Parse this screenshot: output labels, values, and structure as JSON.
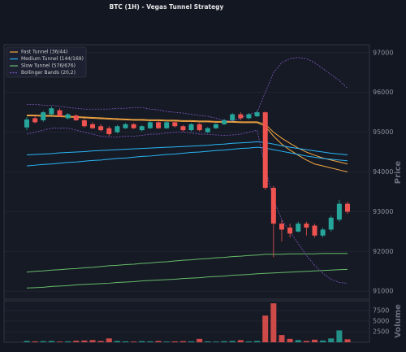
{
  "chart_data": {
    "type": "candlestick",
    "title": "BTC (1H) - Vegas Tunnel Strategy",
    "ylabel": "Price",
    "ylim": [
      90800,
      97200
    ],
    "yticks": [
      91000,
      92000,
      93000,
      94000,
      95000,
      96000,
      97000
    ],
    "grid": true,
    "legend": "upper left",
    "up_color": "#26a69a",
    "down_color": "#ef5350",
    "open": [
      95120,
      95350,
      95300,
      95450,
      95550,
      95350,
      95420,
      95300,
      95200,
      95150,
      95100,
      95000,
      95100,
      95200,
      95050,
      95100,
      95250,
      95100,
      95250,
      95150,
      95050,
      95200,
      95000,
      95100,
      95200,
      95300,
      95450,
      95350,
      95400,
      95500,
      93600,
      92700,
      92600,
      92500,
      92700,
      92650,
      92400,
      92550,
      92800,
      93200
    ],
    "high": [
      95380,
      95420,
      95530,
      95650,
      95600,
      95480,
      95450,
      95330,
      95250,
      95200,
      95150,
      95180,
      95230,
      95230,
      95180,
      95280,
      95300,
      95280,
      95280,
      95180,
      95230,
      95230,
      95130,
      95230,
      95330,
      95480,
      95500,
      95480,
      95550,
      95520,
      93650,
      92780,
      92700,
      92750,
      92750,
      92700,
      92600,
      92900,
      93300,
      93250
    ],
    "low": [
      95050,
      95220,
      95260,
      95420,
      95380,
      95320,
      95280,
      95120,
      95080,
      95020,
      94900,
      94970,
      95080,
      95080,
      95020,
      95080,
      95080,
      95080,
      95120,
      95020,
      95020,
      95020,
      94980,
      95080,
      95180,
      95280,
      95300,
      95330,
      95380,
      93550,
      91850,
      92250,
      92350,
      92480,
      92400,
      92350,
      92350,
      92500,
      92750,
      92950
    ],
    "close": [
      95320,
      95250,
      95500,
      95600,
      95400,
      95450,
      95300,
      95150,
      95100,
      95050,
      94950,
      95150,
      95200,
      95100,
      95150,
      95250,
      95100,
      95250,
      95150,
      95050,
      95200,
      95050,
      95100,
      95200,
      95300,
      95450,
      95350,
      95450,
      95500,
      93600,
      92700,
      92550,
      92450,
      92700,
      92600,
      92400,
      92550,
      92850,
      93200,
      93000
    ],
    "overlays": [
      {
        "name": "Fast Tunnel (36/44)",
        "color": "#f5a742",
        "dash": false,
        "upper": [
          95430,
          95430,
          95420,
          95420,
          95410,
          95400,
          95390,
          95380,
          95370,
          95360,
          95350,
          95340,
          95330,
          95320,
          95320,
          95310,
          95310,
          95300,
          95300,
          95290,
          95290,
          95280,
          95280,
          95270,
          95270,
          95270,
          95260,
          95260,
          95260,
          95200,
          95000,
          94850,
          94720,
          94600,
          94500,
          94420,
          94350,
          94300,
          94250,
          94200
        ],
        "lower": [
          95410,
          95410,
          95400,
          95400,
          95390,
          95380,
          95370,
          95360,
          95350,
          95340,
          95330,
          95320,
          95310,
          95300,
          95300,
          95290,
          95290,
          95280,
          95280,
          95270,
          95270,
          95260,
          95260,
          95250,
          95250,
          95250,
          95240,
          95240,
          95240,
          95150,
          94900,
          94700,
          94550,
          94420,
          94300,
          94200,
          94150,
          94100,
          94050,
          94000
        ]
      },
      {
        "name": "Medium Tunnel (144/169)",
        "color": "#29b6f6",
        "dash": false,
        "upper": [
          94430,
          94440,
          94450,
          94460,
          94480,
          94490,
          94500,
          94510,
          94530,
          94540,
          94550,
          94560,
          94570,
          94580,
          94590,
          94600,
          94610,
          94620,
          94630,
          94640,
          94650,
          94660,
          94670,
          94690,
          94700,
          94720,
          94730,
          94740,
          94760,
          94740,
          94700,
          94660,
          94620,
          94590,
          94560,
          94530,
          94500,
          94470,
          94450,
          94430
        ],
        "lower": [
          94150,
          94170,
          94190,
          94200,
          94220,
          94240,
          94250,
          94270,
          94290,
          94300,
          94320,
          94340,
          94350,
          94370,
          94390,
          94400,
          94420,
          94440,
          94450,
          94470,
          94490,
          94500,
          94520,
          94540,
          94550,
          94570,
          94590,
          94600,
          94620,
          94600,
          94560,
          94520,
          94480,
          94440,
          94400,
          94370,
          94340,
          94320,
          94300,
          94280
        ]
      },
      {
        "name": "Slow Tunnel (576/676)",
        "color": "#66bb6a",
        "dash": false,
        "upper": [
          91480,
          91500,
          91510,
          91530,
          91540,
          91560,
          91570,
          91590,
          91600,
          91620,
          91640,
          91650,
          91670,
          91680,
          91700,
          91710,
          91730,
          91740,
          91760,
          91780,
          91790,
          91810,
          91820,
          91840,
          91850,
          91870,
          91880,
          91900,
          91910,
          91930,
          91930,
          91930,
          91940,
          91940,
          91940,
          91940,
          91950,
          91950,
          91950,
          91950
        ],
        "lower": [
          91080,
          91090,
          91100,
          91120,
          91130,
          91140,
          91160,
          91170,
          91180,
          91190,
          91200,
          91220,
          91230,
          91240,
          91260,
          91270,
          91280,
          91290,
          91300,
          91320,
          91330,
          91340,
          91360,
          91370,
          91380,
          91400,
          91410,
          91420,
          91440,
          91450,
          91460,
          91470,
          91480,
          91490,
          91500,
          91510,
          91520,
          91530,
          91540,
          91550
        ]
      },
      {
        "name": "Bollinger Bands (20,2)",
        "color": "#7e57c2",
        "dash": true,
        "upper": [
          95700,
          95700,
          95680,
          95680,
          95650,
          95620,
          95600,
          95580,
          95580,
          95580,
          95580,
          95600,
          95600,
          95620,
          95620,
          95580,
          95560,
          95520,
          95500,
          95480,
          95450,
          95420,
          95400,
          95350,
          95300,
          95280,
          95350,
          95450,
          95500,
          96000,
          96500,
          96750,
          96850,
          96880,
          96850,
          96750,
          96600,
          96450,
          96300,
          96100
        ],
        "lower": [
          94950,
          95000,
          95050,
          95100,
          95100,
          95100,
          95050,
          95000,
          94950,
          94900,
          94880,
          94880,
          94900,
          94900,
          94920,
          94950,
          94950,
          94980,
          95000,
          95000,
          94980,
          94950,
          94950,
          94930,
          94920,
          94930,
          94950,
          95000,
          95050,
          94100,
          93300,
          92800,
          92500,
          92200,
          91900,
          91650,
          91450,
          91300,
          91220,
          91200
        ]
      }
    ],
    "volume": {
      "ylabel": "Volume",
      "ylim": [
        0,
        9800
      ],
      "yticks": [
        2500,
        5000,
        7500
      ],
      "values": [
        300,
        200,
        250,
        300,
        150,
        200,
        350,
        400,
        500,
        300,
        900,
        300,
        200,
        150,
        250,
        200,
        300,
        150,
        200,
        250,
        200,
        800,
        200,
        150,
        250,
        300,
        500,
        200,
        300,
        6300,
        9200,
        1700,
        800,
        500,
        300,
        600,
        400,
        900,
        2800,
        700
      ]
    }
  }
}
